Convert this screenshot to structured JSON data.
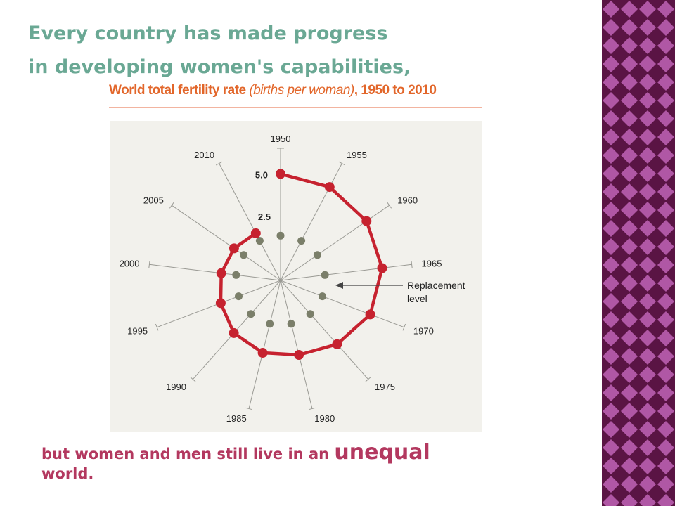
{
  "slide": {
    "heading_line1": "Every country has made progress",
    "heading_line2": "in developing women's capabilities,",
    "footer_prefix": "but women and men still live in an",
    "footer_emphasis": "unequal",
    "footer_suffix": "world."
  },
  "colors": {
    "heading": "#6aa894",
    "footer": "#b3385f",
    "chart_title": "#e2662a",
    "fertility_series": "#c6222f",
    "replacement_series": "#7b7f6a",
    "spoke": "#9a9a94",
    "panel_background": "#f2f1ec",
    "side_pattern_dark": "#5a1444",
    "side_pattern_light": "#b057a5"
  },
  "chart_data": {
    "type": "radar",
    "title_bold_1": "World total fertility rate",
    "title_italic": "(births per woman)",
    "title_bold_2": ", 1950 to 2010",
    "categories": [
      "1950",
      "1955",
      "1960",
      "1965",
      "1970",
      "1975",
      "1980",
      "1985",
      "1990",
      "1995",
      "2000",
      "2005",
      "2010"
    ],
    "radial_tick_labels": [
      "2.5",
      "5.0"
    ],
    "rmax": 6.2,
    "series": [
      {
        "values": [
          5.0,
          4.95,
          4.9,
          4.8,
          4.5,
          4.0,
          3.6,
          3.5,
          3.3,
          3.0,
          2.8,
          2.65,
          2.5
        ]
      },
      {
        "values": [
          2.1,
          2.1,
          2.1,
          2.1,
          2.1,
          2.1,
          2.1,
          2.1,
          2.1,
          2.1,
          2.1,
          2.1,
          2.1
        ]
      }
    ],
    "annotation_line1": "Replacement",
    "annotation_line2": "level"
  }
}
